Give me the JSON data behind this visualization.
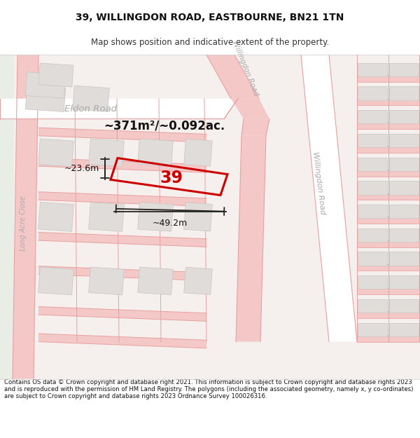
{
  "title_line1": "39, WILLINGDON ROAD, EASTBOURNE, BN21 1TN",
  "title_line2": "Map shows position and indicative extent of the property.",
  "footer_text": "Contains OS data © Crown copyright and database right 2021. This information is subject to Crown copyright and database rights 2023 and is reproduced with the permission of HM Land Registry. The polygons (including the associated geometry, namely x, y co-ordinates) are subject to Crown copyright and database rights 2023 Ordnance Survey 100026316.",
  "map_bg": "#f5f0ed",
  "road_fill": "#f5c8c8",
  "road_line": "#e8a0a0",
  "bld_fill": "#e0dcda",
  "bld_edge": "#c8c4c0",
  "white_road": "#ffffff",
  "highlight_color": "#cc0000",
  "property_label": "39",
  "area_label": "~371m²/~0.092ac.",
  "width_label": "~49.2m",
  "height_label": "~23.6m",
  "road_label_willingdon1": "Willingdon Road",
  "road_label_willingdon2": "Willingdon Road",
  "road_label_eldon": "Eldon Road",
  "road_label_lac": "Long Acre Close"
}
